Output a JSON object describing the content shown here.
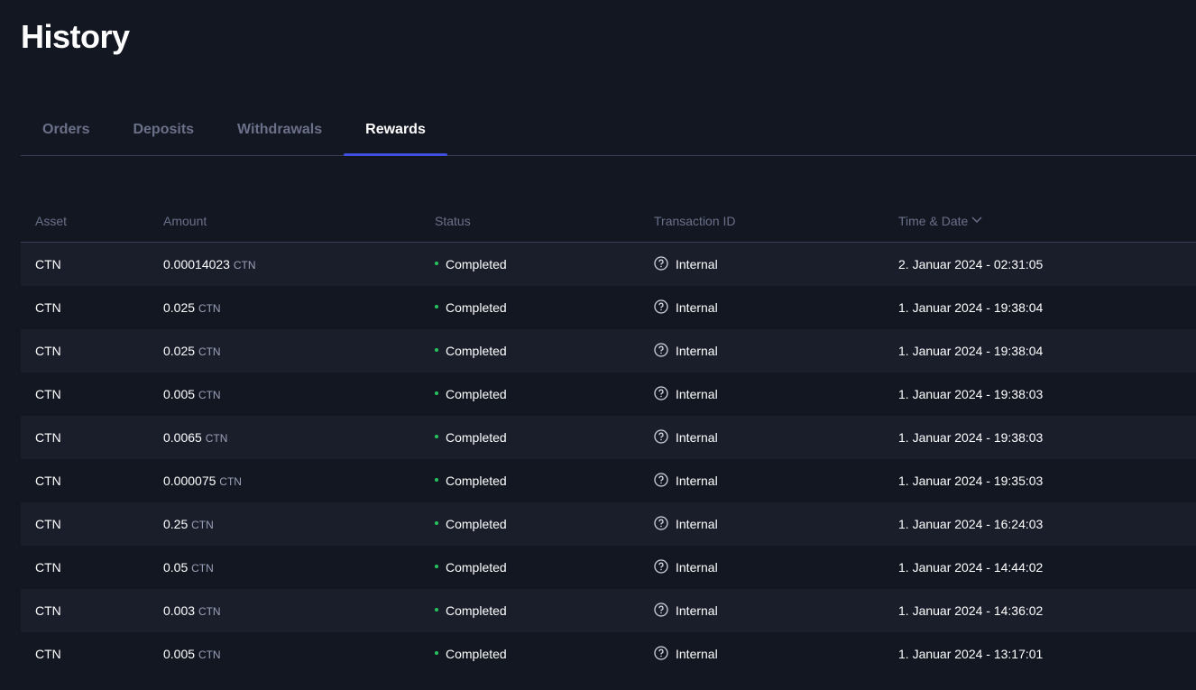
{
  "page": {
    "title": "History"
  },
  "tabs": [
    {
      "label": "Orders"
    },
    {
      "label": "Deposits"
    },
    {
      "label": "Withdrawals"
    },
    {
      "label": "Rewards",
      "active": true
    }
  ],
  "table": {
    "headers": {
      "asset": "Asset",
      "amount": "Amount",
      "status": "Status",
      "txid": "Transaction ID",
      "time": "Time & Date"
    },
    "sort_icon": "chevron-down-icon",
    "status_color": "#22c55e",
    "rows": [
      {
        "asset": "CTN",
        "amount": "0.00014023",
        "unit": "CTN",
        "status": "Completed",
        "txid": "Internal",
        "time": "2. Januar 2024 - 02:31:05"
      },
      {
        "asset": "CTN",
        "amount": "0.025",
        "unit": "CTN",
        "status": "Completed",
        "txid": "Internal",
        "time": "1. Januar 2024 - 19:38:04"
      },
      {
        "asset": "CTN",
        "amount": "0.025",
        "unit": "CTN",
        "status": "Completed",
        "txid": "Internal",
        "time": "1. Januar 2024 - 19:38:04"
      },
      {
        "asset": "CTN",
        "amount": "0.005",
        "unit": "CTN",
        "status": "Completed",
        "txid": "Internal",
        "time": "1. Januar 2024 - 19:38:03"
      },
      {
        "asset": "CTN",
        "amount": "0.0065",
        "unit": "CTN",
        "status": "Completed",
        "txid": "Internal",
        "time": "1. Januar 2024 - 19:38:03"
      },
      {
        "asset": "CTN",
        "amount": "0.000075",
        "unit": "CTN",
        "status": "Completed",
        "txid": "Internal",
        "time": "1. Januar 2024 - 19:35:03"
      },
      {
        "asset": "CTN",
        "amount": "0.25",
        "unit": "CTN",
        "status": "Completed",
        "txid": "Internal",
        "time": "1. Januar 2024 - 16:24:03"
      },
      {
        "asset": "CTN",
        "amount": "0.05",
        "unit": "CTN",
        "status": "Completed",
        "txid": "Internal",
        "time": "1. Januar 2024 - 14:44:02"
      },
      {
        "asset": "CTN",
        "amount": "0.003",
        "unit": "CTN",
        "status": "Completed",
        "txid": "Internal",
        "time": "1. Januar 2024 - 14:36:02"
      },
      {
        "asset": "CTN",
        "amount": "0.005",
        "unit": "CTN",
        "status": "Completed",
        "txid": "Internal",
        "time": "1. Januar 2024 - 13:17:01"
      }
    ]
  }
}
